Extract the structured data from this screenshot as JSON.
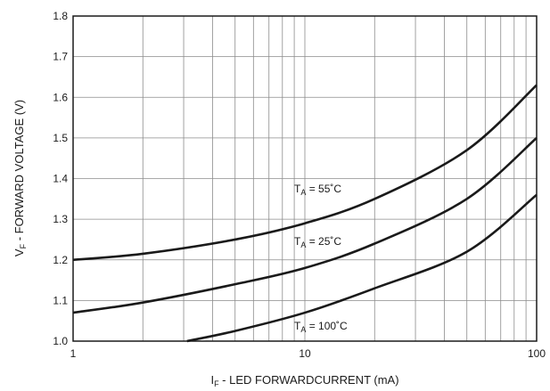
{
  "chart_data": {
    "type": "line",
    "xlabel": {
      "main": "I",
      "sub": "F",
      "rest": " - LED FORWARDCURRENT (mA)"
    },
    "ylabel": {
      "main": "V",
      "sub": "F",
      "rest": " - FORWARD VOLTAGE (V)"
    },
    "xscale": "log",
    "xlim": [
      1,
      100
    ],
    "ylim": [
      1.0,
      1.8
    ],
    "xticks": [
      1,
      10,
      100
    ],
    "xtick_labels": [
      "1",
      "10",
      "100"
    ],
    "yticks": [
      1.0,
      1.1,
      1.2,
      1.3,
      1.4,
      1.5,
      1.6,
      1.7,
      1.8
    ],
    "ytick_labels": [
      "1.0",
      "1.1",
      "1.2",
      "1.3",
      "1.4",
      "1.5",
      "1.6",
      "1.7",
      "1.8"
    ],
    "grid": true,
    "series": [
      {
        "label": {
          "main": "T",
          "sub": "A",
          "rest": " = 55˚C"
        },
        "x": [
          1,
          2,
          5,
          10,
          20,
          50,
          100
        ],
        "y": [
          1.2,
          1.215,
          1.25,
          1.29,
          1.35,
          1.47,
          1.63
        ]
      },
      {
        "label": {
          "main": "T",
          "sub": "A",
          "rest": " = 25˚C"
        },
        "x": [
          1,
          2,
          5,
          10,
          20,
          50,
          100
        ],
        "y": [
          1.07,
          1.095,
          1.14,
          1.18,
          1.24,
          1.35,
          1.5
        ]
      },
      {
        "label": {
          "main": "T",
          "sub": "A",
          "rest": " = 100˚C"
        },
        "x": [
          3.1,
          5,
          10,
          20,
          50,
          100
        ],
        "y": [
          1.0,
          1.025,
          1.07,
          1.13,
          1.22,
          1.36
        ]
      }
    ]
  }
}
